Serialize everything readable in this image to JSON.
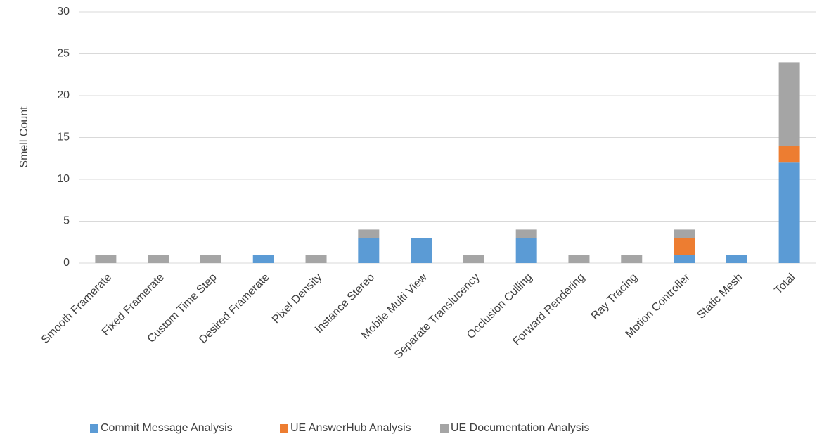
{
  "chart_data": {
    "type": "stacked_bar",
    "y_label": "Smell Count",
    "categories": [
      "Smooth  Framerate",
      "Fixed Framerate",
      "Custom Time Step",
      "Desired Framerate",
      "Pixel Density",
      "Instance Stereo",
      "Mobile Multi View",
      "Separate Translucency",
      "Occlusion Culling",
      "Forward Rendering",
      "Ray Tracing",
      "Motion Controller",
      "Static Mesh",
      "Total"
    ],
    "series": [
      {
        "name": "Commit Message Analysis",
        "color": "#5b9bd5",
        "values": [
          0,
          0,
          0,
          1,
          0,
          3,
          3,
          0,
          3,
          0,
          0,
          1,
          1,
          12
        ]
      },
      {
        "name": "UE AnswerHub Analysis",
        "color": "#ed7d31",
        "values": [
          0,
          0,
          0,
          0,
          0,
          0,
          0,
          0,
          0,
          0,
          0,
          2,
          0,
          2
        ]
      },
      {
        "name": "UE Documentation Analysis",
        "color": "#a5a5a5",
        "values": [
          1,
          1,
          1,
          0,
          1,
          1,
          0,
          1,
          1,
          1,
          1,
          1,
          0,
          10
        ]
      }
    ],
    "ylim": [
      0,
      30
    ],
    "yticks": [
      0,
      5,
      10,
      15,
      20,
      25,
      30
    ],
    "grid": true,
    "legend": "bottom"
  }
}
